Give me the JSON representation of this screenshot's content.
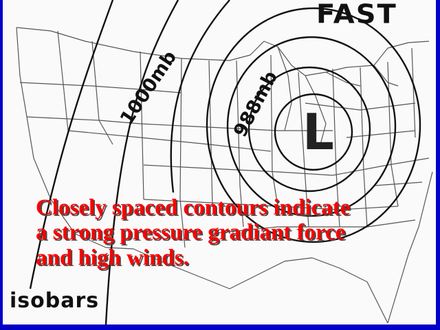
{
  "slide": {
    "corner_label": "FAST",
    "legend_label": "isobars",
    "low_symbol": "L",
    "caption_lines": [
      "Closely spaced contours indicate",
      "a strong pressure gradiant force",
      "and high winds."
    ],
    "caption_color": "#ff0000",
    "frame_color": "#0000c8"
  },
  "map": {
    "isobar_labels": {
      "outer": "1000mb",
      "inner": "988mb"
    }
  }
}
